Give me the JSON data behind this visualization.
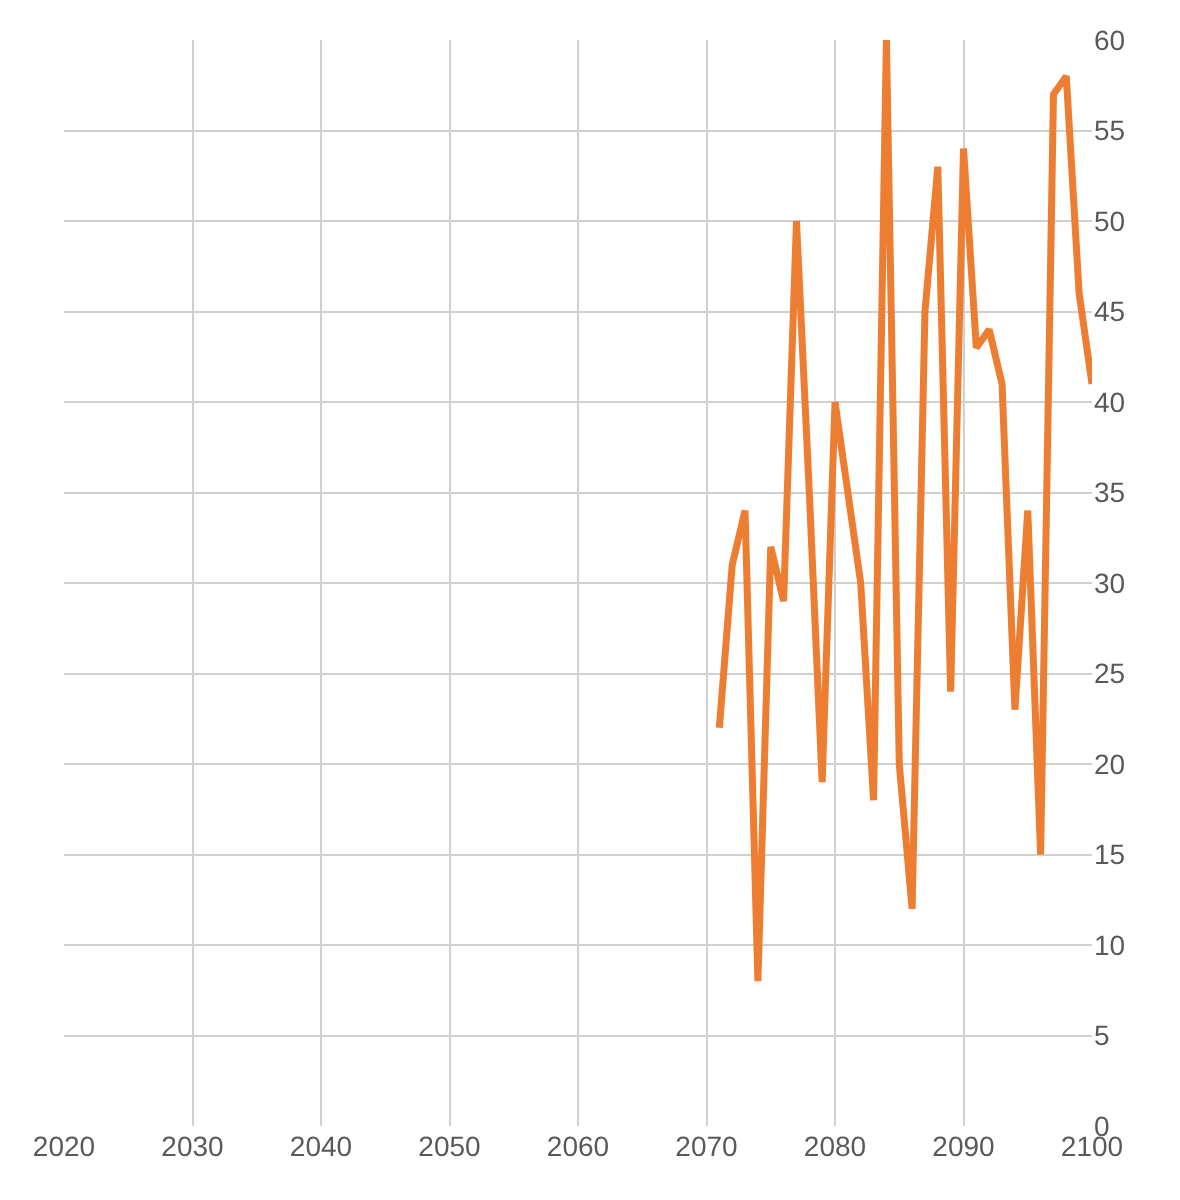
{
  "chart_data": {
    "type": "line",
    "x": [
      2071,
      2072,
      2073,
      2074,
      2075,
      2076,
      2077,
      2078,
      2079,
      2080,
      2081,
      2082,
      2083,
      2084,
      2085,
      2086,
      2087,
      2088,
      2089,
      2090,
      2091,
      2092,
      2093,
      2094,
      2095,
      2096,
      2097,
      2098,
      2099,
      2100
    ],
    "series": [
      {
        "color": "#ed7d31",
        "values": [
          22,
          31,
          34,
          8,
          32,
          29,
          50,
          35,
          19,
          40,
          35,
          30,
          18,
          60,
          20,
          12,
          45,
          53,
          24,
          54,
          43,
          44,
          41,
          23,
          34,
          15,
          57,
          58,
          46,
          41
        ]
      }
    ],
    "xlim": [
      2020,
      2100
    ],
    "xticks": [
      2020,
      2030,
      2040,
      2050,
      2060,
      2070,
      2080,
      2090,
      2100
    ],
    "ylim": [
      0,
      60
    ],
    "yticks": [
      0,
      5,
      10,
      15,
      20,
      25,
      30,
      35,
      40,
      45,
      50,
      55,
      60
    ],
    "grid": true,
    "legend": false,
    "marker": "none",
    "line_style": "solid"
  }
}
